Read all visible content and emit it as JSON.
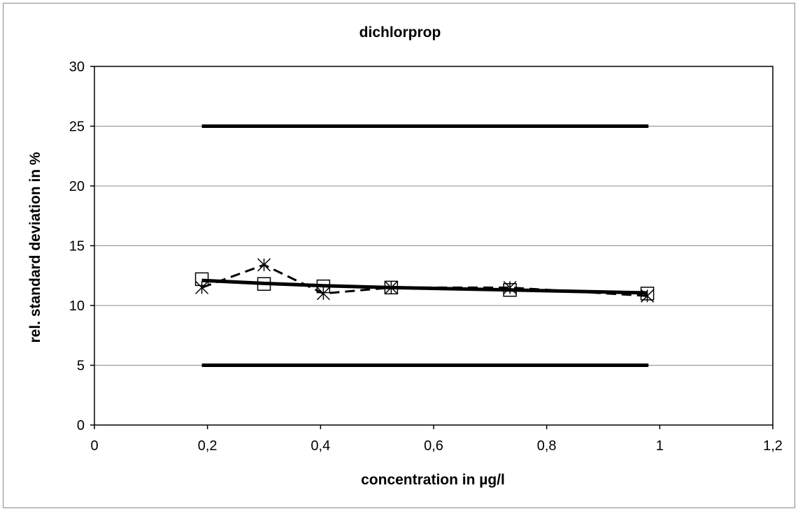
{
  "chart_data": {
    "type": "line",
    "title": "dichlorprop",
    "xlabel": "concentration in µg/l",
    "ylabel": "rel. standard deviation in %",
    "xlim": [
      0,
      1.2
    ],
    "ylim": [
      0,
      30
    ],
    "x_ticks": [
      0,
      0.2,
      0.4,
      0.6,
      0.8,
      1,
      1.2
    ],
    "x_tick_labels": [
      "0",
      "0,2",
      "0,4",
      "0,6",
      "0,8",
      "1",
      "1,2"
    ],
    "y_ticks": [
      0,
      5,
      10,
      15,
      20,
      25,
      30
    ],
    "y_tick_labels": [
      "0",
      "5",
      "10",
      "15",
      "20",
      "25",
      "30"
    ],
    "grid": "horizontal",
    "legend": "none",
    "series": [
      {
        "style": "solid-thick",
        "marker": "none",
        "color": "#000000",
        "x": [
          0.19,
          0.98
        ],
        "y": [
          25,
          25
        ]
      },
      {
        "style": "solid-thick",
        "marker": "none",
        "color": "#000000",
        "x": [
          0.19,
          0.98
        ],
        "y": [
          5,
          5
        ]
      },
      {
        "style": "solid",
        "marker": "square",
        "color": "#000000",
        "x": [
          0.19,
          0.3,
          0.405,
          0.525,
          0.735,
          0.978
        ],
        "y": [
          12.2,
          11.8,
          11.6,
          11.5,
          11.3,
          11.0
        ]
      },
      {
        "style": "dashed",
        "marker": "asterisk",
        "color": "#000000",
        "x": [
          0.19,
          0.3,
          0.405,
          0.525,
          0.735,
          0.978
        ],
        "y": [
          11.5,
          13.4,
          11.0,
          11.5,
          11.5,
          10.8
        ]
      },
      {
        "style": "solid-thick",
        "marker": "none",
        "color": "#000000",
        "x": [
          0.19,
          0.3,
          0.405,
          0.525,
          0.735,
          0.978
        ],
        "y": [
          12.1,
          11.85,
          11.65,
          11.5,
          11.3,
          11.05
        ]
      }
    ]
  }
}
